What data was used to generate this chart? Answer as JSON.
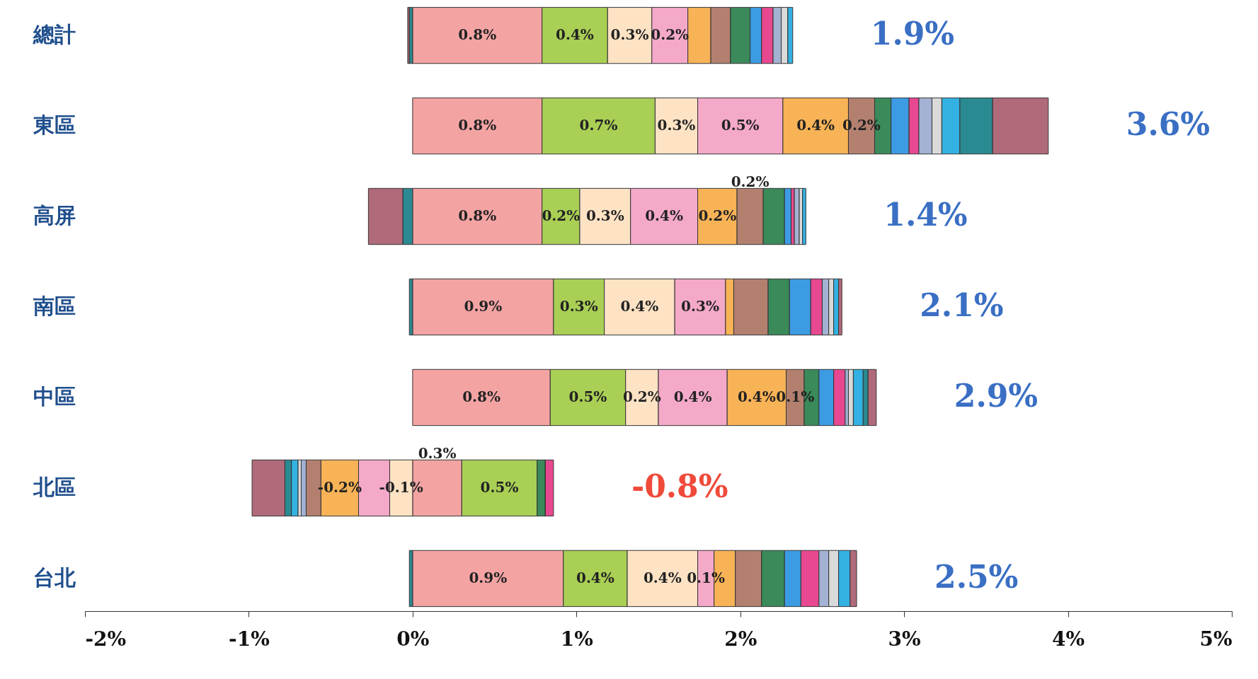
{
  "chart_data": {
    "type": "bar",
    "orientation": "horizontal",
    "stacked": true,
    "categories": [
      "總計",
      "東區",
      "高屏",
      "南區",
      "中區",
      "北區",
      "台北"
    ],
    "series": [
      {
        "color": "#f4a3a3",
        "values": [
          0.79,
          0.79,
          0.79,
          0.86,
          0.84,
          0.3,
          0.92
        ],
        "value_labels": [
          "0.8%",
          "0.8%",
          "0.8%",
          "0.9%",
          "0.8%",
          "0.3%",
          "0.9%"
        ]
      },
      {
        "color": "#a9cf55",
        "values": [
          0.4,
          0.69,
          0.23,
          0.31,
          0.46,
          0.46,
          0.39
        ],
        "value_labels": [
          "0.4%",
          "0.7%",
          "0.2%",
          "0.3%",
          "0.5%",
          "0.5%",
          "0.4%"
        ]
      },
      {
        "color": "#fde2c4",
        "values": [
          0.27,
          0.26,
          0.31,
          0.43,
          0.2,
          -0.14,
          0.43
        ],
        "value_labels": [
          "0.3%",
          "0.3%",
          "0.3%",
          "0.4%",
          "0.2%",
          "-0.1%",
          "0.4%"
        ]
      },
      {
        "color": "#f5a9c9",
        "values": [
          0.22,
          0.52,
          0.41,
          0.31,
          0.42,
          -0.19,
          0.1
        ],
        "value_labels": [
          "0.2%",
          "0.5%",
          "0.4%",
          "0.3%",
          "0.4%",
          null,
          "0.1%"
        ]
      },
      {
        "color": "#f8b357",
        "values": [
          0.14,
          0.4,
          0.24,
          0.05,
          0.36,
          -0.23,
          0.13
        ],
        "value_labels": [
          null,
          "0.4%",
          "0.2%",
          null,
          "0.4%",
          "-0.2%",
          null
        ]
      },
      {
        "color": "#b3806f",
        "values": [
          0.12,
          0.16,
          0.16,
          0.21,
          0.11,
          -0.09,
          0.16
        ],
        "value_labels": [
          null,
          "0.2%",
          "0.2%",
          null,
          "0.1%",
          null,
          null
        ]
      },
      {
        "color": "#3a8a5a",
        "values": [
          0.12,
          0.1,
          0.13,
          0.13,
          0.09,
          0.05,
          0.14
        ]
      },
      {
        "color": "#3d9be3",
        "values": [
          0.07,
          0.11,
          0.04,
          0.13,
          0.09,
          0.0,
          0.1
        ]
      },
      {
        "color": "#e8488f",
        "values": [
          0.07,
          0.06,
          0.02,
          0.07,
          0.07,
          0.05,
          0.11
        ]
      },
      {
        "color": "#a3b2d3",
        "values": [
          0.05,
          0.08,
          0.03,
          0.04,
          0.02,
          -0.03,
          0.06
        ]
      },
      {
        "color": "#dadada",
        "values": [
          0.04,
          0.06,
          0.02,
          0.03,
          0.03,
          -0.02,
          0.06
        ]
      },
      {
        "color": "#33b1e2",
        "values": [
          0.03,
          0.11,
          0.02,
          0.03,
          0.06,
          -0.04,
          0.07
        ]
      },
      {
        "color": "#2a8a91",
        "values": [
          -0.02,
          0.2,
          -0.06,
          -0.02,
          0.03,
          -0.04,
          -0.02
        ]
      },
      {
        "color": "#b06a7a",
        "values": [
          -0.01,
          0.34,
          -0.21,
          0.02,
          0.05,
          -0.2,
          0.04
        ]
      }
    ],
    "totals": [
      "1.9%",
      "3.6%",
      "1.4%",
      "2.1%",
      "2.9%",
      "-0.8%",
      "2.5%"
    ],
    "xlim": [
      -2,
      5
    ],
    "xticks": [
      {
        "value": -2,
        "label": "-2%"
      },
      {
        "value": -1,
        "label": "-1%"
      },
      {
        "value": 0,
        "label": "0%"
      },
      {
        "value": 1,
        "label": "1%"
      },
      {
        "value": 2,
        "label": "2%"
      },
      {
        "value": 3,
        "label": "3%"
      },
      {
        "value": 4,
        "label": "4%"
      },
      {
        "value": 5,
        "label": "5%"
      }
    ]
  }
}
